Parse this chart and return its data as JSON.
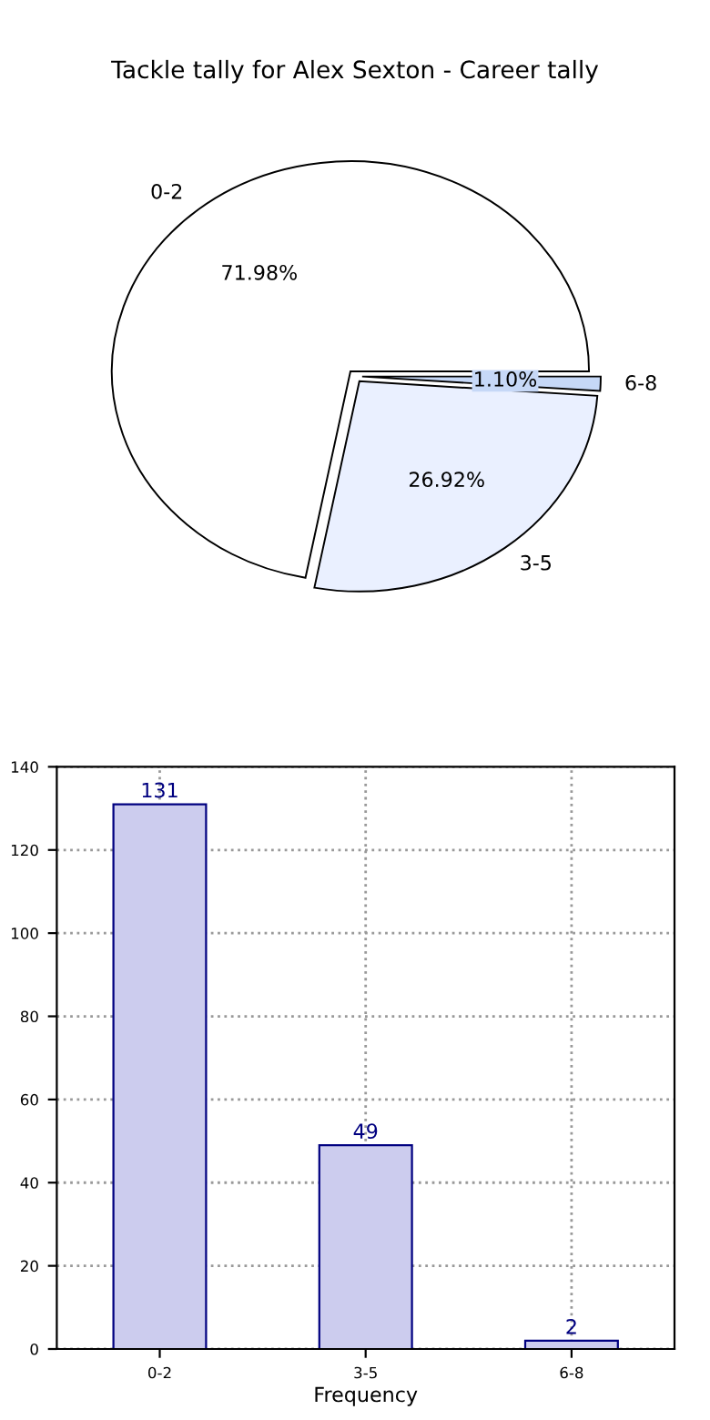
{
  "chart_data": [
    {
      "type": "pie",
      "title": "Tackle tally for Alex Sexton - Career tally",
      "categories": [
        "0-2",
        "3-5",
        "6-8"
      ],
      "values": [
        71.98,
        26.92,
        1.1
      ],
      "value_labels": [
        "71.98%",
        "26.92%",
        "1.10%"
      ],
      "colors": [
        "#ffffff",
        "#eaf0ff",
        "#c6d8f7"
      ]
    },
    {
      "type": "bar",
      "xlabel": "Frequency",
      "categories": [
        "0-2",
        "3-5",
        "6-8"
      ],
      "values": [
        131,
        49,
        2
      ],
      "color": "#ccccee",
      "ylim": [
        0,
        140
      ],
      "yticks": [
        0,
        20,
        40,
        60,
        80,
        100,
        120,
        140
      ],
      "grid": true,
      "data_labels": true
    }
  ]
}
